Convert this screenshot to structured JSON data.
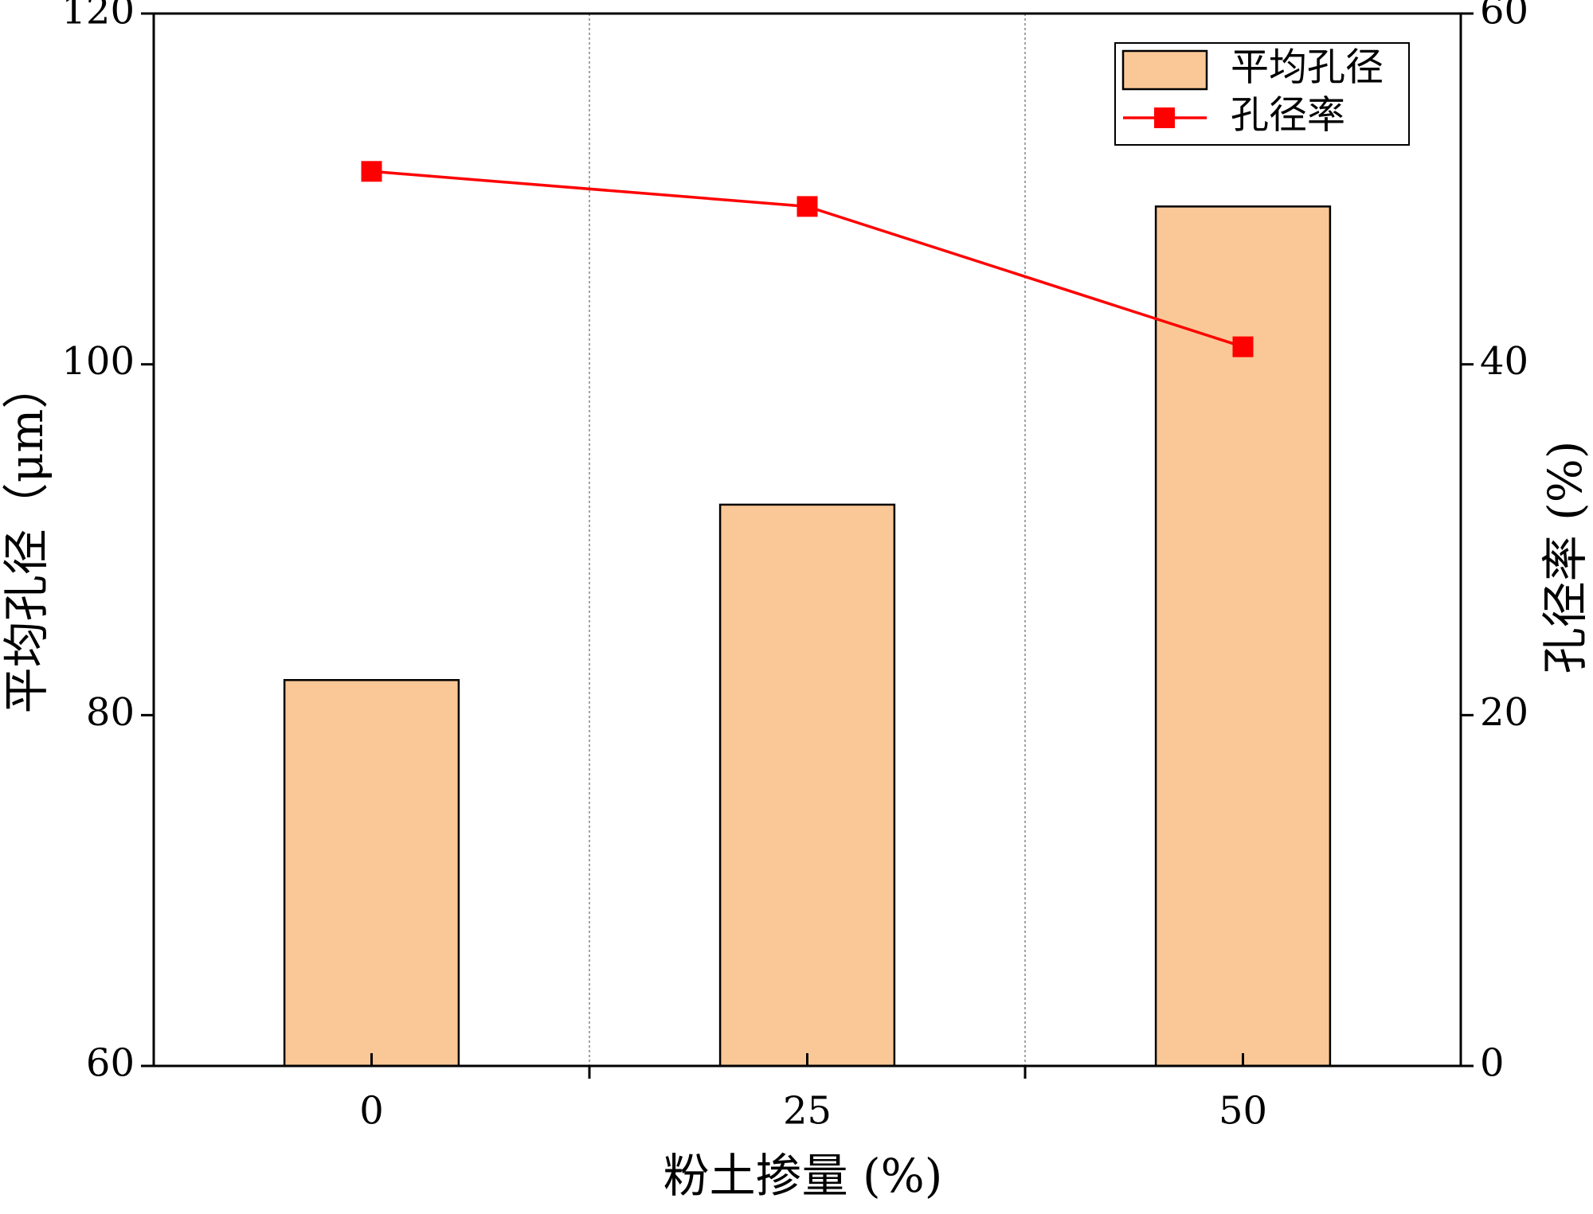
{
  "chart_data": {
    "type": "bar",
    "x_label": "粉土掺量 (%)",
    "y_label": "平均孔径（μm）",
    "y2_label": "孔径率 (%)",
    "categories": [
      "0",
      "25",
      "50"
    ],
    "series": [
      {
        "name": "平均孔径",
        "type": "bar",
        "color": "#f9c896",
        "values": [
          82,
          92,
          109
        ]
      },
      {
        "name": "孔径率",
        "type": "line",
        "axis": "y2",
        "color": "#ff0000",
        "values": [
          51,
          49,
          41
        ]
      }
    ],
    "ylim": [
      60,
      120
    ],
    "yticks": [
      60,
      80,
      100,
      120
    ],
    "y2lim": [
      0,
      60
    ],
    "y2ticks": [
      0,
      20,
      40,
      60
    ],
    "legend": "top-right"
  }
}
